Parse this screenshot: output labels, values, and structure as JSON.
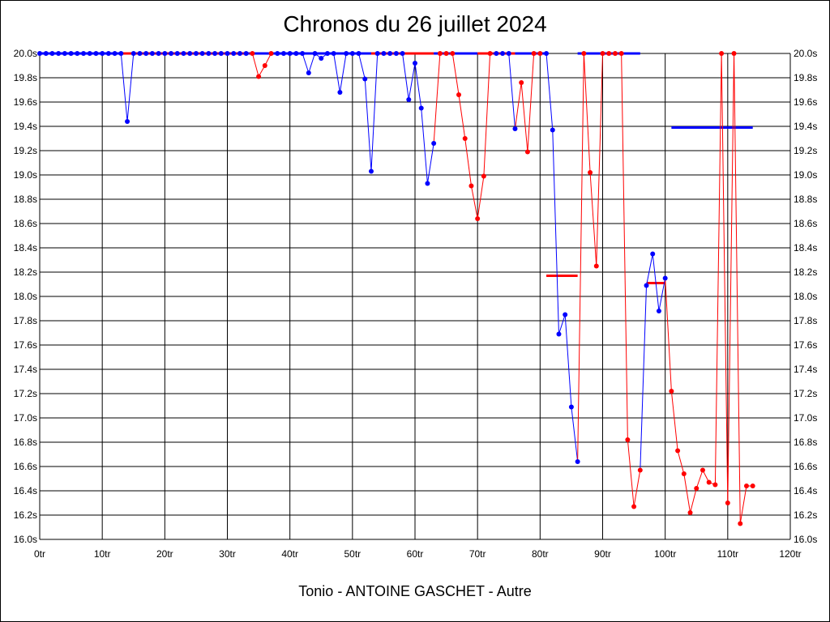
{
  "chart_data": {
    "type": "line",
    "title": "Chronos du 26 juillet 2024",
    "subtitle": "Tonio - ANTOINE GASCHET - Autre",
    "xlim": [
      0,
      120
    ],
    "ylim": [
      16.0,
      20.0
    ],
    "x_tick_labels": [
      "0tr",
      "10tr",
      "20tr",
      "30tr",
      "40tr",
      "50tr",
      "60tr",
      "70tr",
      "80tr",
      "90tr",
      "100tr",
      "110tr",
      "120tr"
    ],
    "y_tick_labels": [
      "20.0s",
      "19.8s",
      "19.6s",
      "19.4s",
      "19.2s",
      "19.0s",
      "18.8s",
      "18.6s",
      "18.4s",
      "18.2s",
      "18.0s",
      "17.8s",
      "17.6s",
      "17.4s",
      "17.2s",
      "17.0s",
      "16.8s",
      "16.6s",
      "16.4s",
      "16.2s",
      "16.0s"
    ],
    "grid": true,
    "colors": {
      "blue": "#0000ff",
      "red": "#ff0000"
    },
    "series": [
      {
        "color": "#0000ff",
        "points": [
          [
            0,
            20
          ],
          [
            1,
            20
          ],
          [
            2,
            20
          ],
          [
            3,
            20
          ],
          [
            4,
            20
          ],
          [
            5,
            20
          ],
          [
            6,
            20
          ],
          [
            7,
            20
          ],
          [
            8,
            20
          ],
          [
            9,
            20
          ],
          [
            10,
            20
          ],
          [
            11,
            20
          ],
          [
            12,
            20
          ],
          [
            13,
            20
          ],
          [
            14,
            19.44
          ],
          [
            15,
            20
          ],
          [
            16,
            20
          ],
          [
            17,
            20
          ],
          [
            18,
            20
          ],
          [
            19,
            20
          ],
          [
            20,
            20
          ],
          [
            21,
            20
          ],
          [
            22,
            20
          ],
          [
            23,
            20
          ],
          [
            24,
            20
          ],
          [
            25,
            20
          ],
          [
            26,
            20
          ],
          [
            27,
            20
          ],
          [
            28,
            20
          ],
          [
            29,
            20
          ],
          [
            30,
            20
          ],
          [
            31,
            20
          ],
          [
            32,
            20
          ],
          [
            33,
            20
          ]
        ]
      },
      {
        "color": "#ff0000",
        "points": [
          [
            34,
            20
          ],
          [
            35,
            19.81
          ],
          [
            36,
            19.9
          ],
          [
            37,
            20
          ]
        ]
      },
      {
        "color": "#0000ff",
        "points": [
          [
            38,
            20
          ],
          [
            39,
            20
          ],
          [
            40,
            20
          ],
          [
            41,
            20
          ],
          [
            42,
            20
          ],
          [
            43,
            19.84
          ],
          [
            44,
            20
          ],
          [
            45,
            19.96
          ],
          [
            46,
            20
          ],
          [
            47,
            20
          ],
          [
            48,
            19.68
          ],
          [
            49,
            20
          ],
          [
            50,
            20
          ],
          [
            51,
            20
          ],
          [
            52,
            19.79
          ],
          [
            53,
            19.03
          ],
          [
            54,
            20
          ],
          [
            55,
            20
          ],
          [
            56,
            20
          ],
          [
            57,
            20
          ],
          [
            58,
            20
          ],
          [
            59,
            19.62
          ],
          [
            60,
            19.92
          ],
          [
            61,
            19.55
          ],
          [
            62,
            18.93
          ],
          [
            63,
            19.26
          ]
        ]
      },
      {
        "color": "#ff0000",
        "points": [
          [
            64,
            20
          ],
          [
            65,
            20
          ],
          [
            66,
            20
          ],
          [
            67,
            19.66
          ],
          [
            68,
            19.3
          ],
          [
            69,
            18.91
          ],
          [
            70,
            18.64
          ],
          [
            71,
            18.99
          ],
          [
            72,
            20
          ]
        ]
      },
      {
        "color": "#0000ff",
        "points": [
          [
            73,
            20
          ],
          [
            74,
            20
          ],
          [
            75,
            20
          ],
          [
            76,
            19.38
          ]
        ]
      },
      {
        "color": "#ff0000",
        "points": [
          [
            77,
            19.76
          ],
          [
            78,
            19.19
          ],
          [
            79,
            20
          ],
          [
            80,
            20
          ]
        ]
      },
      {
        "color": "#0000ff",
        "points": [
          [
            81,
            20
          ],
          [
            82,
            19.37
          ],
          [
            83,
            17.69
          ],
          [
            84,
            17.85
          ],
          [
            85,
            17.09
          ],
          [
            86,
            16.64
          ]
        ]
      },
      {
        "color": "#ff0000",
        "points": [
          [
            87,
            20
          ],
          [
            88,
            19.02
          ],
          [
            89,
            18.25
          ],
          [
            90,
            20
          ],
          [
            91,
            20
          ],
          [
            92,
            20
          ],
          [
            93,
            20
          ],
          [
            94,
            16.82
          ],
          [
            95,
            16.27
          ],
          [
            96,
            16.57
          ]
        ]
      },
      {
        "color": "#0000ff",
        "points": [
          [
            97,
            18.09
          ],
          [
            98,
            18.35
          ],
          [
            99,
            17.88
          ],
          [
            100,
            18.15
          ]
        ]
      },
      {
        "color": "#ff0000",
        "points": [
          [
            101,
            17.22
          ],
          [
            102,
            16.73
          ],
          [
            103,
            16.54
          ],
          [
            104,
            16.22
          ],
          [
            105,
            16.42
          ],
          [
            106,
            16.57
          ],
          [
            107,
            16.47
          ],
          [
            108,
            16.45
          ],
          [
            109,
            20
          ],
          [
            110,
            16.3
          ],
          [
            111,
            20
          ],
          [
            112,
            16.13
          ],
          [
            113,
            16.44
          ],
          [
            114,
            16.44
          ]
        ]
      }
    ],
    "average_lines": [
      {
        "color": "#0000ff",
        "x": [
          0,
          13
        ],
        "y": 20
      },
      {
        "color": "#ff0000",
        "x": [
          13,
          33
        ],
        "y": 20
      },
      {
        "color": "#0000ff",
        "x": [
          33,
          53
        ],
        "y": 20
      },
      {
        "color": "#ff0000",
        "x": [
          53,
          63
        ],
        "y": 20
      },
      {
        "color": "#0000ff",
        "x": [
          63,
          70
        ],
        "y": 20
      },
      {
        "color": "#ff0000",
        "x": [
          70,
          76
        ],
        "y": 20
      },
      {
        "color": "#0000ff",
        "x": [
          76,
          81
        ],
        "y": 20
      },
      {
        "color": "#ff0000",
        "x": [
          81,
          86
        ],
        "y": 18.17
      },
      {
        "color": "#0000ff",
        "x": [
          86,
          96
        ],
        "y": 20
      },
      {
        "color": "#ff0000",
        "x": [
          97,
          100
        ],
        "y": 18.11
      },
      {
        "color": "#0000ff",
        "x": [
          101,
          114
        ],
        "y": 19.39
      }
    ]
  }
}
